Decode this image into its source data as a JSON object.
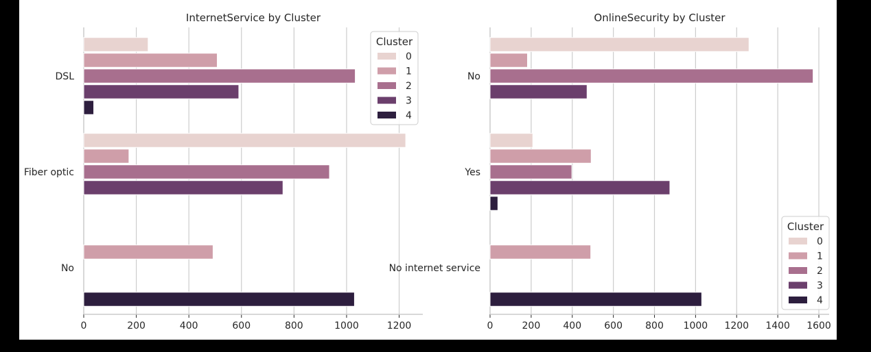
{
  "chart_data": [
    {
      "type": "bar",
      "orientation": "horizontal",
      "title": "InternetService by Cluster",
      "xlabel": "",
      "ylabel": "",
      "categories": [
        "DSL",
        "Fiber optic",
        "No"
      ],
      "xlim": [
        0,
        1290
      ],
      "xticks": [
        0,
        200,
        400,
        600,
        800,
        1000,
        1200
      ],
      "grid": true,
      "legend": {
        "title": "Cluster",
        "placement": "top-right"
      },
      "series": [
        {
          "name": "0",
          "values": [
            245,
            1225,
            0
          ]
        },
        {
          "name": "1",
          "values": [
            508,
            172,
            492
          ]
        },
        {
          "name": "2",
          "values": [
            1033,
            935,
            0
          ]
        },
        {
          "name": "3",
          "values": [
            590,
            758,
            0
          ]
        },
        {
          "name": "4",
          "values": [
            38,
            0,
            1030
          ]
        }
      ]
    },
    {
      "type": "bar",
      "orientation": "horizontal",
      "title": "OnlineSecurity by Cluster",
      "xlabel": "",
      "ylabel": "",
      "categories": [
        "No",
        "Yes",
        "No internet service"
      ],
      "xlim": [
        0,
        1650
      ],
      "xticks": [
        0,
        200,
        400,
        600,
        800,
        1000,
        1200,
        1400,
        1600
      ],
      "grid": true,
      "legend": {
        "title": "Cluster",
        "placement": "lower-right"
      },
      "series": [
        {
          "name": "0",
          "values": [
            1260,
            208,
            0
          ]
        },
        {
          "name": "1",
          "values": [
            182,
            492,
            490
          ]
        },
        {
          "name": "2",
          "values": [
            1572,
            398,
            0
          ]
        },
        {
          "name": "3",
          "values": [
            472,
            875,
            0
          ]
        },
        {
          "name": "4",
          "values": [
            0,
            38,
            1030
          ]
        }
      ]
    }
  ],
  "colors": [
    "#e8d3d0",
    "#cf9ea9",
    "#a86f8e",
    "#6b3f6c",
    "#2d1e3e"
  ],
  "grid_color": "#cccccc",
  "axis_color": "#cccccc"
}
